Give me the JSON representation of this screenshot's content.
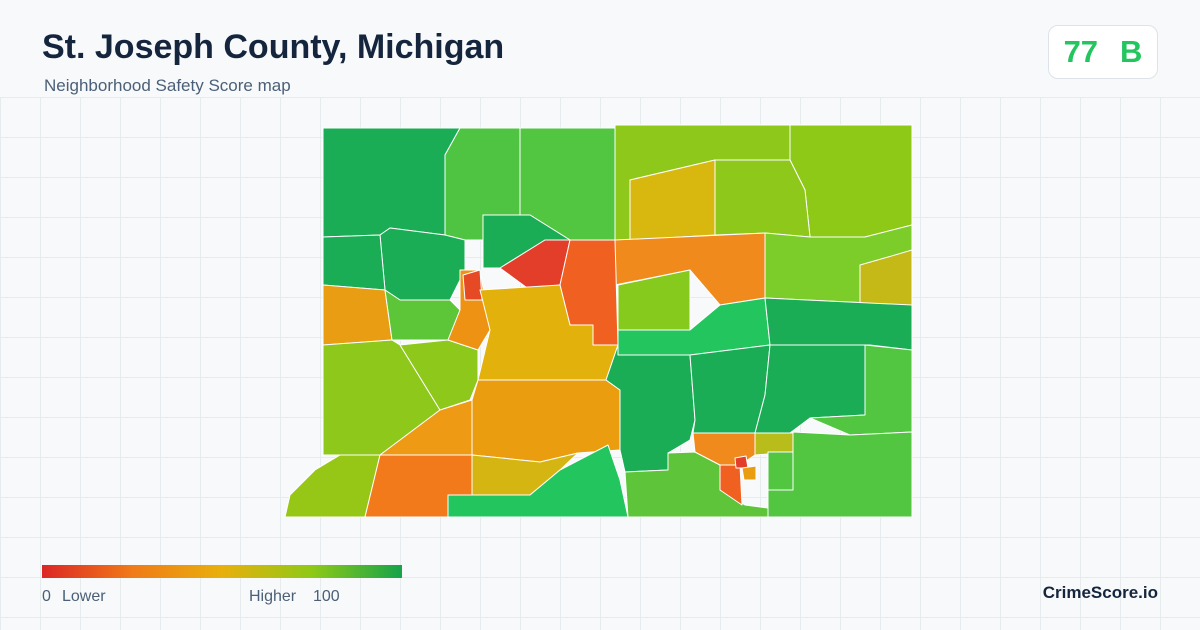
{
  "header": {
    "title": "St. Joseph County, Michigan",
    "subtitle": "Neighborhood Safety Score map"
  },
  "score": {
    "value": 77,
    "grade": "B"
  },
  "legend": {
    "min": 0,
    "min_label": "Lower",
    "max_label": "Higher",
    "max": 100
  },
  "brand": "CrimeScore.io"
}
